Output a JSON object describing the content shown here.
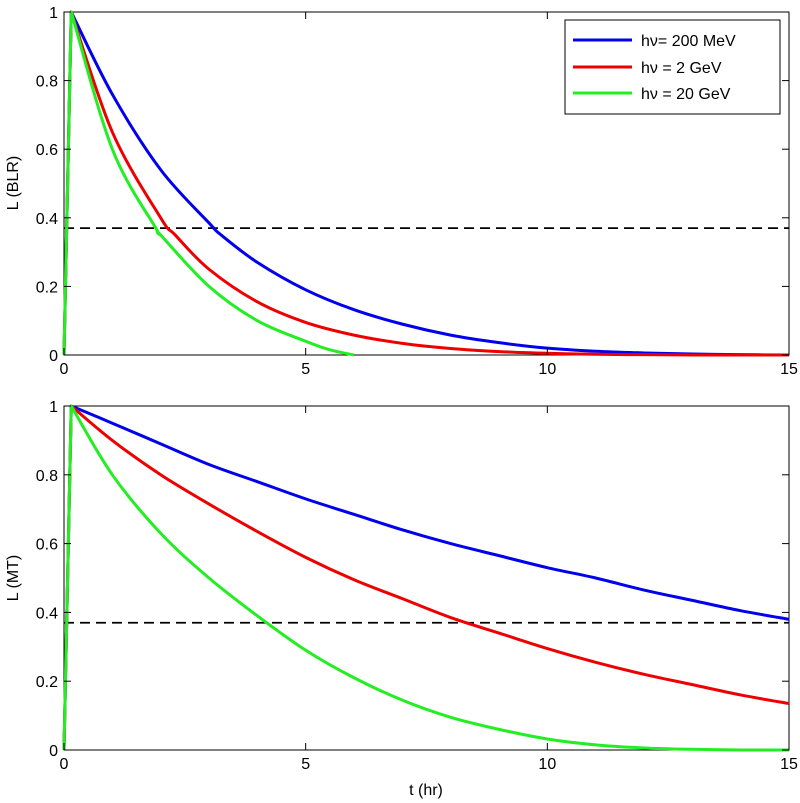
{
  "chart_data": [
    {
      "id": "blr",
      "type": "line",
      "title": "",
      "xlabel": "",
      "ylabel": "L (BLR)",
      "xlim": [
        0,
        15
      ],
      "ylim": [
        0,
        1
      ],
      "xticks": [
        0,
        5,
        10,
        15
      ],
      "yticks": [
        0,
        0.2,
        0.4,
        0.6,
        0.8,
        1
      ],
      "ytick_labels": [
        "0",
        "0.2",
        "0.4",
        "0.6",
        "0.8",
        "1"
      ],
      "reference_line": {
        "y": 0.37,
        "style": "dashed",
        "color": "#000000"
      },
      "legend": {
        "placement": "top-right",
        "entries": [
          "hν= 200 MeV",
          "hν = 2 GeV",
          "hν = 20 GeV"
        ]
      },
      "series": [
        {
          "name": "hν= 200 MeV",
          "color": "#0000ee",
          "x": [
            0,
            0.15,
            1,
            2,
            3,
            3.25,
            4,
            5,
            6,
            7,
            8,
            9,
            10,
            11,
            12,
            13,
            14,
            15
          ],
          "y": [
            0,
            1,
            0.76,
            0.54,
            0.385,
            0.35,
            0.27,
            0.19,
            0.132,
            0.09,
            0.058,
            0.036,
            0.02,
            0.011,
            0.006,
            0.003,
            0.001,
            0.0
          ]
        },
        {
          "name": "hν = 2 GeV",
          "color": "#ee0000",
          "x": [
            0,
            0.15,
            1,
            2,
            2.3,
            3,
            4,
            5,
            6,
            7,
            8,
            9,
            10,
            11,
            12,
            13,
            14,
            15
          ],
          "y": [
            0,
            1,
            0.65,
            0.4,
            0.35,
            0.25,
            0.155,
            0.095,
            0.058,
            0.034,
            0.019,
            0.01,
            0.005,
            0.002,
            0.001,
            0.0,
            0.0,
            0.0
          ]
        },
        {
          "name": "hν = 20 GeV",
          "color": "#22ee22",
          "x": [
            0,
            0.15,
            1,
            1.9,
            2,
            3,
            4,
            5,
            5.5,
            6
          ],
          "y": [
            0,
            1,
            0.6,
            0.37,
            0.35,
            0.2,
            0.1,
            0.04,
            0.015,
            0.0
          ]
        }
      ]
    },
    {
      "id": "mt",
      "type": "line",
      "title": "",
      "xlabel": "t (hr)",
      "ylabel": "L (MT)",
      "xlim": [
        0,
        15
      ],
      "ylim": [
        0,
        1
      ],
      "xticks": [
        0,
        5,
        10,
        15
      ],
      "yticks": [
        0,
        0.2,
        0.4,
        0.6,
        0.8,
        1
      ],
      "ytick_labels": [
        "0",
        "0.2",
        "0.4",
        "0.6",
        "0.8",
        "1"
      ],
      "reference_line": {
        "y": 0.37,
        "style": "dashed",
        "color": "#000000"
      },
      "series": [
        {
          "name": "hν= 200 MeV",
          "color": "#0000ee",
          "x": [
            0,
            0.15,
            1,
            2,
            3,
            4,
            5,
            6,
            7,
            8,
            9,
            10,
            11,
            12,
            13,
            14,
            15
          ],
          "y": [
            0,
            1,
            0.95,
            0.89,
            0.83,
            0.78,
            0.73,
            0.685,
            0.64,
            0.6,
            0.565,
            0.53,
            0.5,
            0.465,
            0.435,
            0.405,
            0.38
          ]
        },
        {
          "name": "hν = 2 GeV",
          "color": "#ee0000",
          "x": [
            0,
            0.15,
            1,
            2,
            3,
            4,
            5,
            6,
            7,
            8,
            9,
            10,
            11,
            12,
            13,
            14,
            15
          ],
          "y": [
            0,
            1,
            0.9,
            0.8,
            0.715,
            0.635,
            0.56,
            0.495,
            0.44,
            0.385,
            0.34,
            0.295,
            0.255,
            0.22,
            0.19,
            0.16,
            0.135
          ]
        },
        {
          "name": "hν = 20 GeV",
          "color": "#22ee22",
          "x": [
            0,
            0.15,
            1,
            2,
            3,
            4,
            5,
            6,
            7,
            8,
            9,
            10,
            11,
            12,
            13,
            14,
            15
          ],
          "y": [
            0,
            1,
            0.8,
            0.63,
            0.5,
            0.39,
            0.29,
            0.21,
            0.145,
            0.095,
            0.06,
            0.032,
            0.015,
            0.006,
            0.002,
            0.0,
            0.0
          ]
        }
      ]
    }
  ]
}
